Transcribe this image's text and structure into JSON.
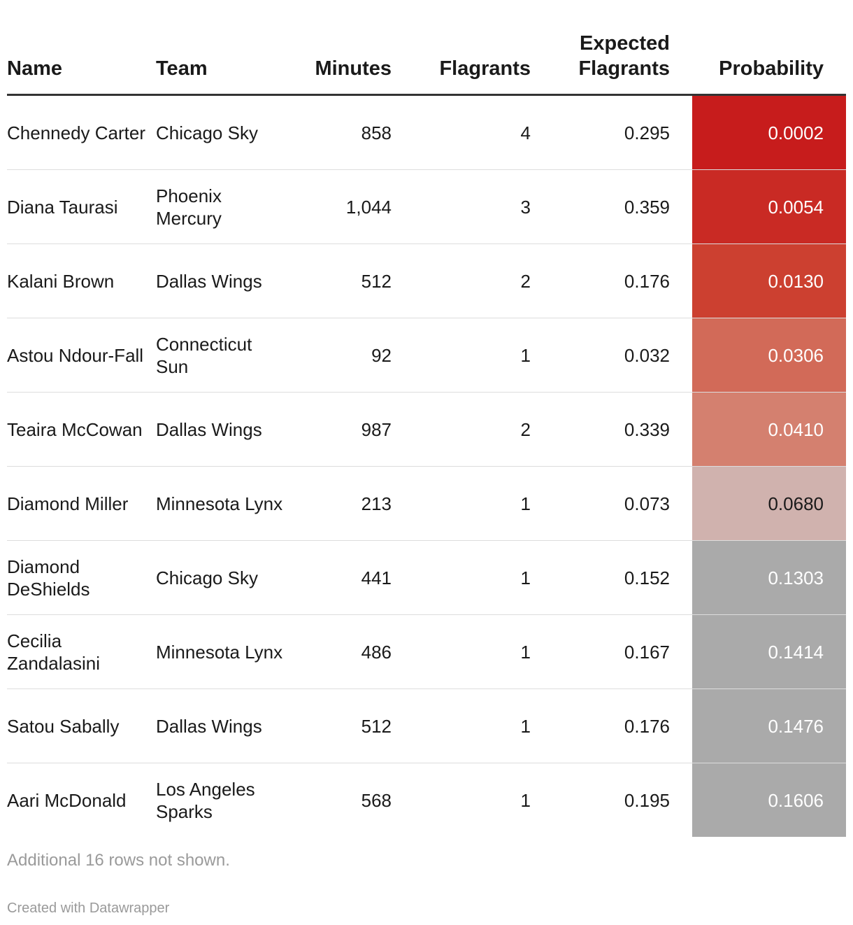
{
  "chart_data": {
    "type": "table",
    "columns": [
      "Name",
      "Team",
      "Minutes",
      "Flagrants",
      "Expected Flagrants",
      "Probability"
    ],
    "rows": [
      {
        "name": "Chennedy Carter",
        "team": "Chicago Sky",
        "minutes": "858",
        "flagrants": "4",
        "expected": "0.295",
        "probability": "0.0002",
        "bg": "#c71c1c",
        "fg": "#ffffff"
      },
      {
        "name": "Diana Taurasi",
        "team": "Phoenix Mercury",
        "minutes": "1,044",
        "flagrants": "3",
        "expected": "0.359",
        "probability": "0.0054",
        "bg": "#c92a24",
        "fg": "#ffffff"
      },
      {
        "name": "Kalani Brown",
        "team": "Dallas Wings",
        "minutes": "512",
        "flagrants": "2",
        "expected": "0.176",
        "probability": "0.0130",
        "bg": "#cc4030",
        "fg": "#ffffff"
      },
      {
        "name": "Astou Ndour-Fall",
        "team": "Connecticut Sun",
        "minutes": "92",
        "flagrants": "1",
        "expected": "0.032",
        "probability": "0.0306",
        "bg": "#d26a58",
        "fg": "#ffffff"
      },
      {
        "name": "Teaira McCowan",
        "team": "Dallas Wings",
        "minutes": "987",
        "flagrants": "2",
        "expected": "0.339",
        "probability": "0.0410",
        "bg": "#d4806f",
        "fg": "#ffffff"
      },
      {
        "name": "Diamond Miller",
        "team": "Minnesota Lynx",
        "minutes": "213",
        "flagrants": "1",
        "expected": "0.073",
        "probability": "0.0680",
        "bg": "#d0b2ae",
        "fg": "#1a1a1a"
      },
      {
        "name": "Diamond DeShields",
        "team": "Chicago Sky",
        "minutes": "441",
        "flagrants": "1",
        "expected": "0.152",
        "probability": "0.1303",
        "bg": "#aaaaaa",
        "fg": "#ffffff"
      },
      {
        "name": "Cecilia Zandalasini",
        "team": "Minnesota Lynx",
        "minutes": "486",
        "flagrants": "1",
        "expected": "0.167",
        "probability": "0.1414",
        "bg": "#aaaaaa",
        "fg": "#ffffff"
      },
      {
        "name": "Satou Sabally",
        "team": "Dallas Wings",
        "minutes": "512",
        "flagrants": "1",
        "expected": "0.176",
        "probability": "0.1476",
        "bg": "#aaaaaa",
        "fg": "#ffffff"
      },
      {
        "name": "Aari McDonald",
        "team": "Los Angeles Sparks",
        "minutes": "568",
        "flagrants": "1",
        "expected": "0.195",
        "probability": "0.1606",
        "bg": "#aaaaaa",
        "fg": "#ffffff"
      }
    ]
  },
  "header": {
    "name": "Name",
    "team": "Team",
    "minutes": "Minutes",
    "flagrants": "Flagrants",
    "expected_line1": "Expected",
    "expected_line2": "Flagrants",
    "probability": "Probability"
  },
  "footnote": "Additional 16 rows not shown.",
  "credit": "Created with Datawrapper"
}
